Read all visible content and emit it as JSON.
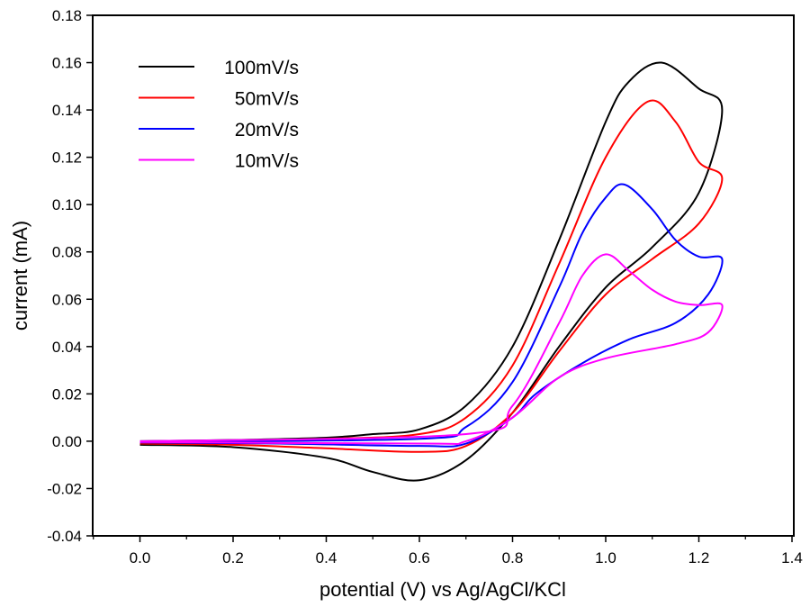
{
  "chart_data": {
    "type": "line",
    "title": "",
    "xlabel": "potential (V) vs Ag/AgCl/KCl",
    "ylabel": "current (mA)",
    "xlim": [
      -0.1,
      1.4
    ],
    "ylim": [
      -0.04,
      0.18
    ],
    "xticks": [
      "0.0",
      "0.2",
      "0.4",
      "0.6",
      "0.8",
      "1.0",
      "1.2",
      "1.4"
    ],
    "xtick_values": [
      0,
      0.2,
      0.4,
      0.6,
      0.8,
      1.0,
      1.2,
      1.4
    ],
    "yticks": [
      "-0.04",
      "-0.02",
      "0.00",
      "0.02",
      "0.04",
      "0.06",
      "0.08",
      "0.10",
      "0.12",
      "0.14",
      "0.16",
      "0.18"
    ],
    "ytick_values": [
      -0.04,
      -0.02,
      0,
      0.02,
      0.04,
      0.06,
      0.08,
      0.1,
      0.12,
      0.14,
      0.16,
      0.18
    ],
    "grid": false,
    "legend_position": "top-left",
    "series": [
      {
        "name": "100mV/s",
        "color": "#000000",
        "x": [
          0,
          0.2,
          0.4,
          0.5,
          0.6,
          0.7,
          0.8,
          0.9,
          1.0,
          1.05,
          1.12,
          1.2,
          1.25,
          1.2,
          1.1,
          1.0,
          0.9,
          0.8,
          0.7,
          0.6,
          0.5,
          0.4,
          0.2,
          0
        ],
        "y": [
          0,
          0.0005,
          0.0015,
          0.003,
          0.005,
          0.015,
          0.04,
          0.085,
          0.135,
          0.152,
          0.16,
          0.149,
          0.14,
          0.105,
          0.082,
          0.065,
          0.04,
          0.012,
          -0.008,
          -0.0165,
          -0.013,
          -0.007,
          -0.0025,
          -0.0015
        ]
      },
      {
        "name": "50mV/s",
        "color": "#ff0000",
        "x": [
          0,
          0.4,
          0.6,
          0.7,
          0.8,
          0.9,
          1.0,
          1.09,
          1.15,
          1.2,
          1.25,
          1.2,
          1.1,
          1.0,
          0.9,
          0.8,
          0.7,
          0.6,
          0.4,
          0.2,
          0
        ],
        "y": [
          -0.0005,
          0.001,
          0.003,
          0.01,
          0.032,
          0.075,
          0.12,
          0.1435,
          0.135,
          0.118,
          0.111,
          0.092,
          0.077,
          0.062,
          0.038,
          0.012,
          -0.002,
          -0.0045,
          -0.003,
          -0.0015,
          -0.001
        ]
      },
      {
        "name": "20mV/s",
        "color": "#0000ff",
        "x": [
          0,
          0.6,
          0.7,
          0.8,
          0.9,
          0.95,
          1.0,
          1.04,
          1.1,
          1.15,
          1.2,
          1.25,
          1.22,
          1.15,
          1.05,
          0.95,
          0.85,
          0.8,
          0.7,
          0.6,
          0.3,
          0
        ],
        "y": [
          -0.0003,
          0.001,
          0.006,
          0.025,
          0.065,
          0.088,
          0.103,
          0.1085,
          0.098,
          0.085,
          0.078,
          0.077,
          0.062,
          0.05,
          0.043,
          0.033,
          0.02,
          0.01,
          -0.001,
          -0.002,
          -0.001,
          -0.0005
        ]
      },
      {
        "name": "10mV/s",
        "color": "#ff00ff",
        "x": [
          0,
          0.7,
          0.8,
          0.9,
          0.95,
          1.0,
          1.05,
          1.1,
          1.15,
          1.2,
          1.25,
          1.22,
          1.15,
          1.0,
          0.9,
          0.8,
          0.7,
          0.6,
          0
        ],
        "y": [
          0,
          0.003,
          0.015,
          0.05,
          0.07,
          0.079,
          0.072,
          0.064,
          0.059,
          0.0575,
          0.0575,
          0.046,
          0.041,
          0.035,
          0.027,
          0.01,
          0,
          -0.001,
          -0.0003
        ]
      }
    ]
  }
}
